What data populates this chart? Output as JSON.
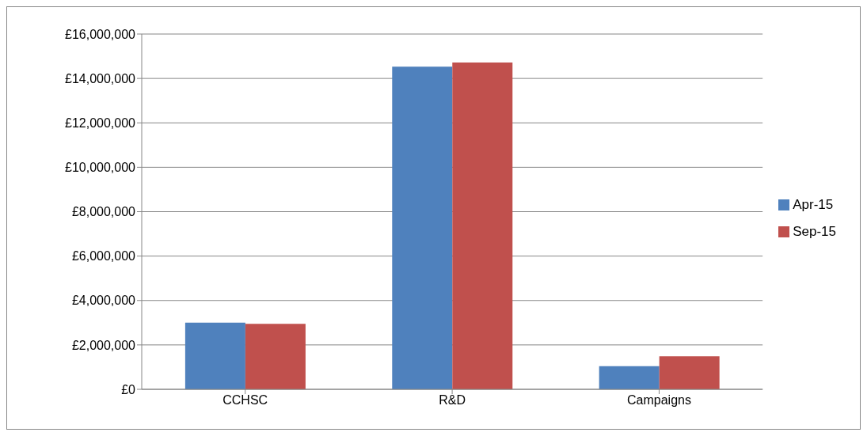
{
  "chart_data": {
    "type": "bar",
    "categories": [
      "CCHSC",
      "R&D",
      "Campaigns"
    ],
    "series": [
      {
        "name": "Apr-15",
        "color": "#4f81bd",
        "values": [
          3000000,
          14530000,
          1040000
        ]
      },
      {
        "name": "Sep-15",
        "color": "#c0504d",
        "values": [
          2950000,
          14720000,
          1490000
        ]
      }
    ],
    "ylim": [
      0,
      16000000
    ],
    "yticks": [
      {
        "value": 0,
        "label": "£0"
      },
      {
        "value": 2000000,
        "label": "£2,000,000"
      },
      {
        "value": 4000000,
        "label": "£4,000,000"
      },
      {
        "value": 6000000,
        "label": "£6,000,000"
      },
      {
        "value": 8000000,
        "label": "£8,000,000"
      },
      {
        "value": 10000000,
        "label": "£10,000,000"
      },
      {
        "value": 12000000,
        "label": "£12,000,000"
      },
      {
        "value": 14000000,
        "label": "£14,000,000"
      },
      {
        "value": 16000000,
        "label": "£16,000,000"
      }
    ],
    "grid": "y",
    "legend": "right"
  }
}
